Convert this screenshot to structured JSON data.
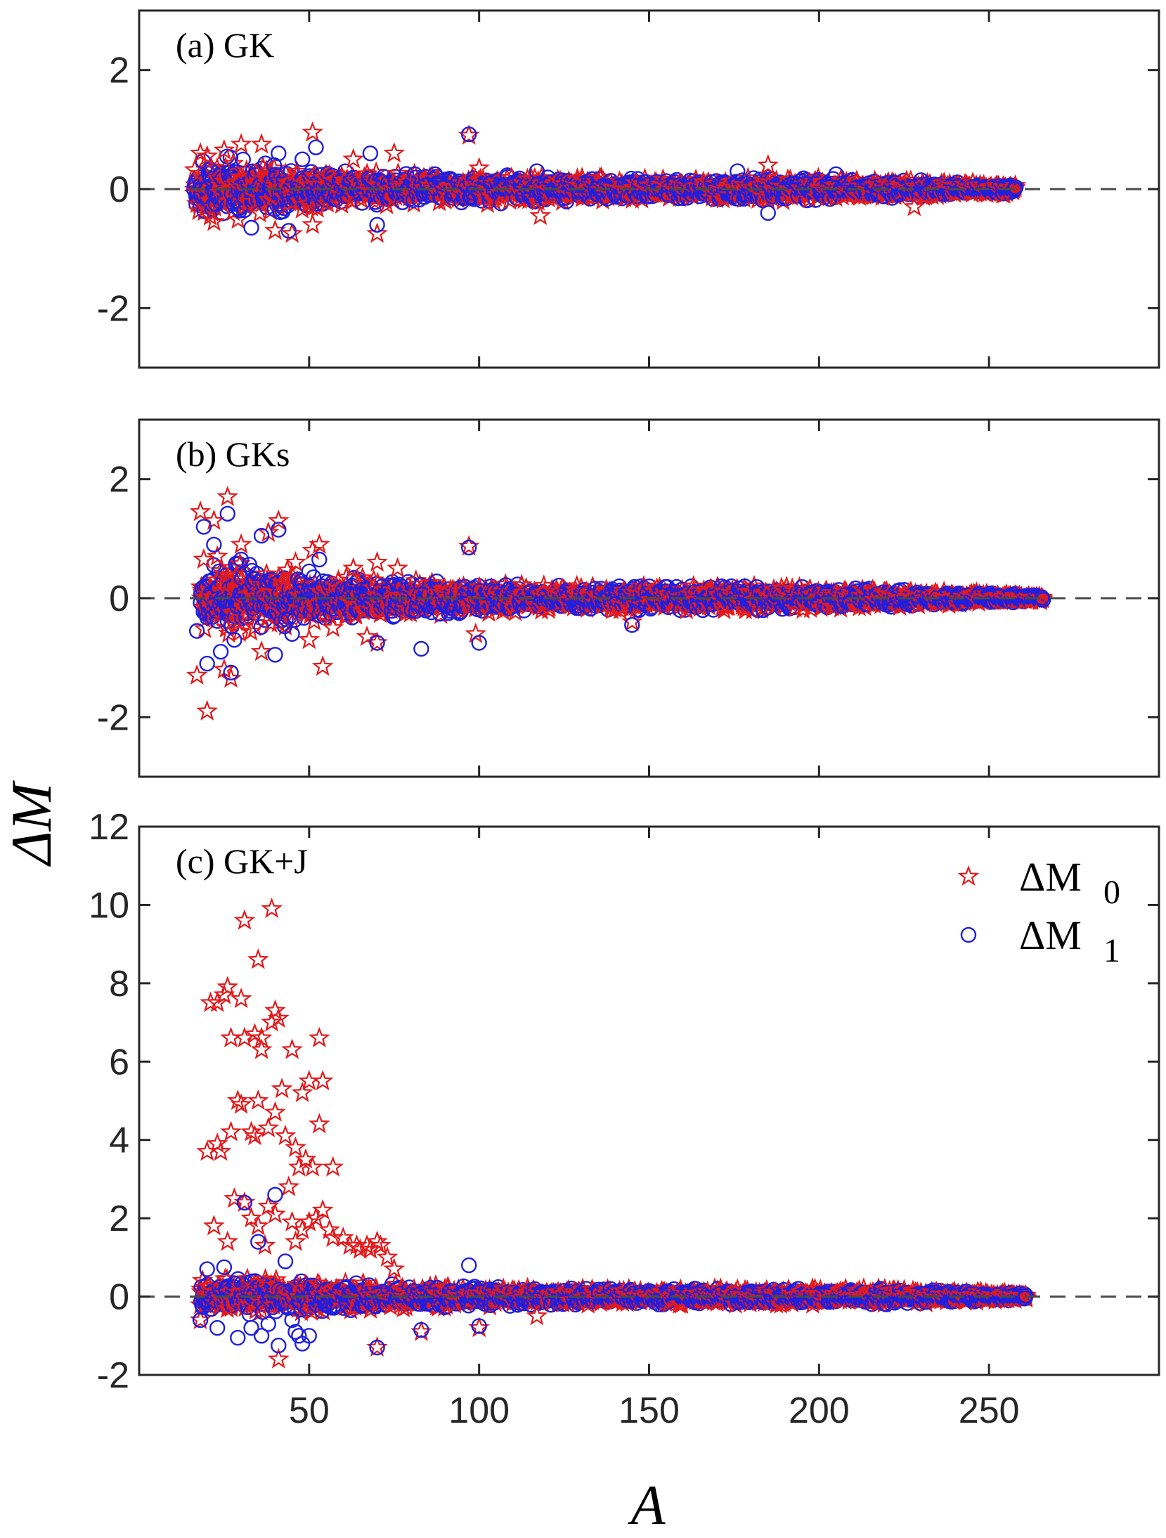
{
  "figure": {
    "xlabel": "A",
    "ylabel": "ΔM",
    "legend": {
      "placement": "top-right of panel (c)",
      "entries": [
        {
          "symbol": "star",
          "base": "ΔM",
          "sub": "0",
          "color": "#e41a1c"
        },
        {
          "symbol": "circle",
          "base": "ΔM",
          "sub": "1",
          "color": "#1f1fe0"
        }
      ]
    }
  },
  "chart_data": [
    {
      "type": "scatter",
      "title": "(a) GK",
      "xlim": [
        0,
        300
      ],
      "ylim": [
        -3,
        3
      ],
      "xticks": [
        50,
        100,
        150,
        200,
        250
      ],
      "yticks": [
        2,
        0,
        -2
      ],
      "reference_line": 0,
      "envelope": {
        "a_min": 16,
        "a_max": 258,
        "outer": [
          [
            16,
            0.55
          ],
          [
            25,
            0.55
          ],
          [
            35,
            0.45
          ],
          [
            45,
            0.35
          ],
          [
            60,
            0.3
          ],
          [
            80,
            0.25
          ],
          [
            100,
            0.25
          ],
          [
            130,
            0.2
          ],
          [
            160,
            0.15
          ],
          [
            190,
            0.2
          ],
          [
            220,
            0.15
          ],
          [
            258,
            0.08
          ]
        ]
      },
      "series": [
        {
          "name": "ΔM0",
          "marker": "star",
          "color": "#e41a1c",
          "outliers": [
            [
              18,
              0.6
            ],
            [
              20,
              0.55
            ],
            [
              22,
              -0.55
            ],
            [
              25,
              0.65
            ],
            [
              30,
              0.75
            ],
            [
              36,
              0.75
            ],
            [
              40,
              -0.7
            ],
            [
              45,
              -0.75
            ],
            [
              51,
              0.95
            ],
            [
              51,
              -0.6
            ],
            [
              63,
              0.5
            ],
            [
              70,
              -0.75
            ],
            [
              75,
              0.6
            ],
            [
              97,
              0.9
            ],
            [
              100,
              0.35
            ],
            [
              118,
              -0.45
            ],
            [
              185,
              0.4
            ],
            [
              228,
              -0.3
            ]
          ]
        },
        {
          "name": "ΔM1",
          "marker": "circle",
          "color": "#1f1fe0",
          "outliers": [
            [
              33,
              -0.65
            ],
            [
              41,
              0.6
            ],
            [
              44,
              -0.7
            ],
            [
              48,
              0.5
            ],
            [
              52,
              0.7
            ],
            [
              68,
              0.6
            ],
            [
              70,
              -0.6
            ],
            [
              97,
              0.92
            ],
            [
              117,
              0.3
            ],
            [
              176,
              0.3
            ],
            [
              185,
              -0.4
            ],
            [
              205,
              0.25
            ],
            [
              230,
              0.15
            ]
          ]
        }
      ]
    },
    {
      "type": "scatter",
      "title": "(b) GKs",
      "xlim": [
        0,
        300
      ],
      "ylim": [
        -3,
        3
      ],
      "xticks": [
        50,
        100,
        150,
        200,
        250
      ],
      "yticks": [
        2,
        0,
        -2
      ],
      "reference_line": 0,
      "envelope": {
        "a_min": 18,
        "a_max": 266,
        "outer": [
          [
            18,
            0.5
          ],
          [
            25,
            0.6
          ],
          [
            35,
            0.55
          ],
          [
            45,
            0.45
          ],
          [
            60,
            0.35
          ],
          [
            80,
            0.3
          ],
          [
            100,
            0.25
          ],
          [
            130,
            0.2
          ],
          [
            160,
            0.2
          ],
          [
            190,
            0.2
          ],
          [
            220,
            0.15
          ],
          [
            266,
            0.05
          ]
        ]
      },
      "series": [
        {
          "name": "ΔM0",
          "marker": "star",
          "color": "#e41a1c",
          "outliers": [
            [
              17,
              -1.3
            ],
            [
              18,
              1.45
            ],
            [
              19,
              0.65
            ],
            [
              20,
              -1.9
            ],
            [
              22,
              1.3
            ],
            [
              23,
              0.7
            ],
            [
              25,
              -1.2
            ],
            [
              26,
              1.7
            ],
            [
              27,
              -1.35
            ],
            [
              30,
              0.9
            ],
            [
              36,
              -0.9
            ],
            [
              38,
              1.1
            ],
            [
              41,
              1.3
            ],
            [
              46,
              0.6
            ],
            [
              50,
              -0.7
            ],
            [
              51,
              0.8
            ],
            [
              53,
              0.9
            ],
            [
              54,
              -1.15
            ],
            [
              57,
              -0.5
            ],
            [
              63,
              0.5
            ],
            [
              67,
              -0.65
            ],
            [
              70,
              0.6
            ],
            [
              70,
              -0.75
            ],
            [
              76,
              0.5
            ],
            [
              97,
              0.87
            ],
            [
              99,
              -0.6
            ],
            [
              145,
              -0.4
            ]
          ]
        },
        {
          "name": "ΔM1",
          "marker": "circle",
          "color": "#1f1fe0",
          "outliers": [
            [
              17,
              -0.55
            ],
            [
              19,
              1.2
            ],
            [
              20,
              -1.1
            ],
            [
              22,
              0.9
            ],
            [
              24,
              -0.9
            ],
            [
              26,
              1.42
            ],
            [
              27,
              -1.25
            ],
            [
              28,
              -0.7
            ],
            [
              30,
              0.65
            ],
            [
              36,
              1.05
            ],
            [
              40,
              -0.95
            ],
            [
              41,
              1.15
            ],
            [
              45,
              -0.6
            ],
            [
              50,
              0.45
            ],
            [
              53,
              0.65
            ],
            [
              70,
              -0.75
            ],
            [
              83,
              -0.85
            ],
            [
              97,
              0.85
            ],
            [
              100,
              -0.75
            ],
            [
              145,
              -0.45
            ]
          ]
        }
      ]
    },
    {
      "type": "scatter",
      "title": "(c) GK+J",
      "xlim": [
        0,
        300
      ],
      "ylim": [
        -2,
        12
      ],
      "xticks": [
        50,
        100,
        150,
        200,
        250
      ],
      "yticks": [
        12,
        10,
        8,
        6,
        4,
        2,
        0,
        -2
      ],
      "reference_line": 0,
      "envelope": {
        "a_min": 18,
        "a_max": 261,
        "outer": [
          [
            18,
            0.4
          ],
          [
            25,
            0.45
          ],
          [
            35,
            0.45
          ],
          [
            45,
            0.4
          ],
          [
            60,
            0.35
          ],
          [
            80,
            0.3
          ],
          [
            100,
            0.25
          ],
          [
            130,
            0.2
          ],
          [
            160,
            0.2
          ],
          [
            190,
            0.2
          ],
          [
            220,
            0.2
          ],
          [
            261,
            0.08
          ]
        ]
      },
      "series": [
        {
          "name": "ΔM0",
          "marker": "star",
          "color": "#e41a1c",
          "outliers": [
            [
              18,
              -0.6
            ],
            [
              20,
              3.7
            ],
            [
              21,
              7.5
            ],
            [
              22,
              1.8
            ],
            [
              23,
              3.9
            ],
            [
              23,
              7.5
            ],
            [
              24,
              3.7
            ],
            [
              25,
              7.7
            ],
            [
              26,
              1.4
            ],
            [
              26,
              7.9
            ],
            [
              27,
              4.2
            ],
            [
              27,
              6.6
            ],
            [
              28,
              2.5
            ],
            [
              29,
              5.0
            ],
            [
              30,
              7.6
            ],
            [
              30,
              4.9
            ],
            [
              31,
              2.4
            ],
            [
              31,
              9.6
            ],
            [
              31,
              6.6
            ],
            [
              33,
              2.0
            ],
            [
              33,
              4.2
            ],
            [
              34,
              6.7
            ],
            [
              34,
              4.1
            ],
            [
              35,
              1.8
            ],
            [
              35,
              5.0
            ],
            [
              35,
              8.6
            ],
            [
              36,
              6.3
            ],
            [
              36,
              6.6
            ],
            [
              37,
              1.3
            ],
            [
              38,
              2.3
            ],
            [
              38,
              4.3
            ],
            [
              39,
              7.0
            ],
            [
              39,
              9.9
            ],
            [
              40,
              4.7
            ],
            [
              40,
              2.1
            ],
            [
              40,
              7.3
            ],
            [
              41,
              7.1
            ],
            [
              41,
              -1.6
            ],
            [
              42,
              5.3
            ],
            [
              43,
              4.1
            ],
            [
              44,
              2.8
            ],
            [
              45,
              6.3
            ],
            [
              45,
              1.9
            ],
            [
              46,
              3.8
            ],
            [
              46,
              1.4
            ],
            [
              47,
              3.3
            ],
            [
              48,
              1.7
            ],
            [
              48,
              5.2
            ],
            [
              49,
              3.5
            ],
            [
              50,
              5.5
            ],
            [
              50,
              1.9
            ],
            [
              51,
              3.3
            ],
            [
              52,
              2.0
            ],
            [
              53,
              6.6
            ],
            [
              53,
              4.4
            ],
            [
              54,
              2.2
            ],
            [
              54,
              5.5
            ],
            [
              56,
              1.7
            ],
            [
              57,
              3.3
            ],
            [
              57,
              1.5
            ],
            [
              60,
              1.5
            ],
            [
              62,
              1.3
            ],
            [
              64,
              1.3
            ],
            [
              65,
              1.2
            ],
            [
              67,
              1.3
            ],
            [
              68,
              1.2
            ],
            [
              70,
              1.4
            ],
            [
              71,
              1.3
            ],
            [
              73,
              1.0
            ],
            [
              75,
              0.7
            ],
            [
              70,
              -1.3
            ],
            [
              83,
              -0.9
            ],
            [
              100,
              -0.8
            ],
            [
              117,
              -0.5
            ]
          ]
        },
        {
          "name": "ΔM1",
          "marker": "circle",
          "color": "#1f1fe0",
          "outliers": [
            [
              18,
              -0.6
            ],
            [
              20,
              0.7
            ],
            [
              23,
              -0.8
            ],
            [
              25,
              0.75
            ],
            [
              29,
              -1.05
            ],
            [
              31,
              2.4
            ],
            [
              33,
              -0.8
            ],
            [
              35,
              1.4
            ],
            [
              36,
              -1.0
            ],
            [
              38,
              -0.7
            ],
            [
              40,
              2.6
            ],
            [
              41,
              -1.25
            ],
            [
              43,
              0.9
            ],
            [
              45,
              -0.6
            ],
            [
              46,
              -0.9
            ],
            [
              47,
              -1.0
            ],
            [
              48,
              -1.2
            ],
            [
              50,
              -1.0
            ],
            [
              70,
              -1.3
            ],
            [
              83,
              -0.85
            ],
            [
              97,
              0.8
            ],
            [
              100,
              -0.75
            ]
          ]
        }
      ]
    }
  ]
}
